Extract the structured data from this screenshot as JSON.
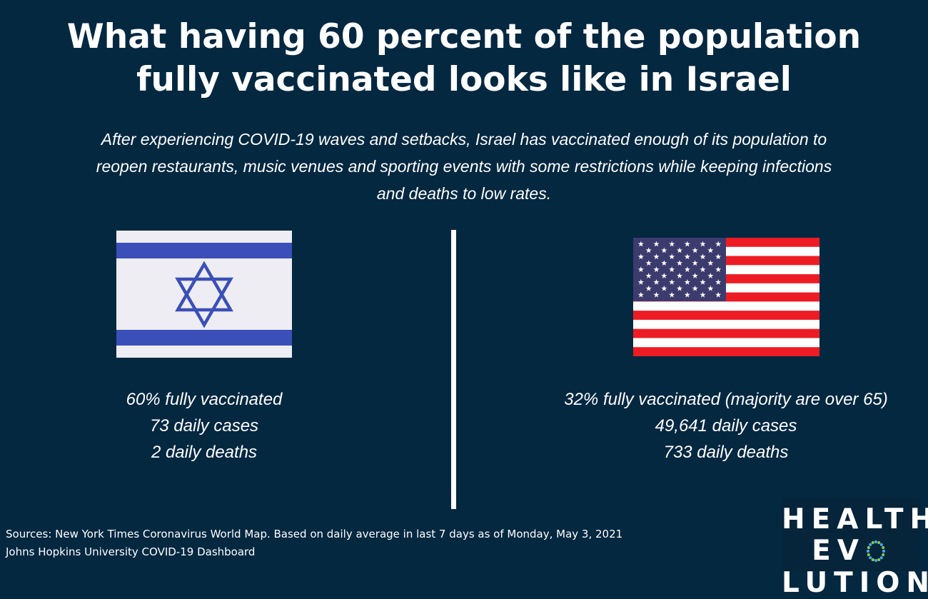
{
  "title": {
    "line1": "What having 60 percent of the population",
    "line2": "fully vaccinated looks like in Israel"
  },
  "subtitle": {
    "line1": "After experiencing COVID-19 waves and setbacks, Israel has vaccinated enough of its population to",
    "line2": "reopen restaurants, music venues and sporting events with some restrictions while keeping infections",
    "line3": "and deaths to low rates."
  },
  "israel": {
    "flag_icon": "israel-flag-icon",
    "flag_colors": {
      "stripe": "#3B4FB8",
      "field": "#EDEDF3"
    },
    "stats": [
      "60% fully vaccinated",
      "73 daily cases",
      "2 daily deaths"
    ]
  },
  "usa": {
    "flag_icon": "us-flag-icon",
    "flag_colors": {
      "red": "#ED1C24",
      "white": "#FFFFFF",
      "blue": "#3C3B6E"
    },
    "stats": [
      "32% fully vaccinated (majority are over 65)",
      "49,641 daily cases",
      "733 daily deaths"
    ]
  },
  "sources": {
    "line1": "Sources: New York Times Coronavirus World Map. Based on daily average in last 7 days as of Monday, May 3, 2021",
    "line2": "Johns Hopkins University COVID-19 Dashboard"
  },
  "logo": {
    "line1": "HEALTH",
    "line2_pre": "EV",
    "line2_post": "LUTION",
    "accent_colors": [
      "#3FA9F5",
      "#8DC63F"
    ]
  },
  "colors": {
    "background": "#052841",
    "text": "#FFFFFF"
  }
}
